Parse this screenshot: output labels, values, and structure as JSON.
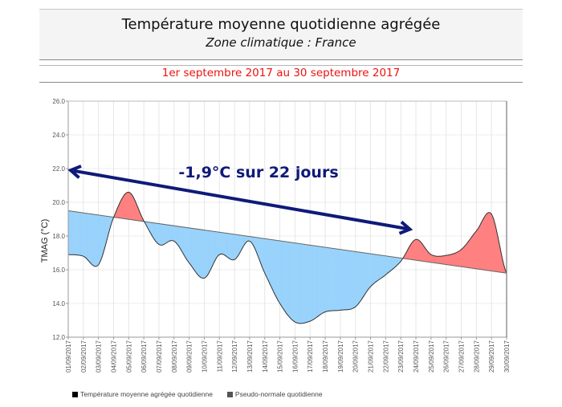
{
  "header": {
    "title": "Température moyenne quotidienne agrégée",
    "subtitle": "Zone climatique : France",
    "period": "1er septembre 2017 au 30 septembre 2017"
  },
  "chart_data": {
    "type": "area",
    "title": "Température moyenne quotidienne agrégée",
    "subtitle": "Zone climatique : France",
    "ylabel": "TMAG (°C)",
    "xlabel": "",
    "ylim": [
      12.0,
      26.0
    ],
    "yticks": [
      "12.0",
      "14.0",
      "16.0",
      "18.0",
      "20.0",
      "22.0",
      "24.0",
      "26.0"
    ],
    "grid": true,
    "categories": [
      "01/09/2017",
      "02/09/2017",
      "03/09/2017",
      "04/09/2017",
      "05/09/2017",
      "06/09/2017",
      "07/09/2017",
      "08/09/2017",
      "09/09/2017",
      "10/09/2017",
      "11/09/2017",
      "12/09/2017",
      "13/09/2017",
      "14/09/2017",
      "15/09/2017",
      "16/09/2017",
      "17/09/2017",
      "18/09/2017",
      "19/09/2017",
      "20/09/2017",
      "21/09/2017",
      "22/09/2017",
      "23/09/2017",
      "24/09/2017",
      "25/09/2017",
      "26/09/2017",
      "27/09/2017",
      "28/09/2017",
      "29/09/2017",
      "30/09/2017"
    ],
    "series": [
      {
        "name": "Température moyenne agrégée  quotidienne",
        "values": [
          16.9,
          16.8,
          16.3,
          19.1,
          20.6,
          18.9,
          17.5,
          17.7,
          16.4,
          15.5,
          16.9,
          16.6,
          17.7,
          15.8,
          14.0,
          12.9,
          12.95,
          13.5,
          13.6,
          13.8,
          15.0,
          15.7,
          16.5,
          17.8,
          16.9,
          16.85,
          17.2,
          18.3,
          19.3,
          15.8
        ],
        "color": "#000000"
      },
      {
        "name": "Pseudo-normale quotidienne",
        "values": [
          19.5,
          19.37,
          19.24,
          19.12,
          18.99,
          18.86,
          18.73,
          18.61,
          18.48,
          18.35,
          18.22,
          18.1,
          17.97,
          17.84,
          17.71,
          17.59,
          17.46,
          17.33,
          17.2,
          17.08,
          16.95,
          16.82,
          16.69,
          16.57,
          16.44,
          16.31,
          16.18,
          16.06,
          15.93,
          15.8
        ],
        "color": "#555555"
      }
    ],
    "fill_colors": {
      "above_normal": "#ff8080",
      "below_normal": "#99d3fc"
    },
    "annotation": {
      "text": "-1,9°C sur 22 jours",
      "color": "#0f1a78",
      "arrow_from_day": 1,
      "arrow_from_value": 21.9,
      "arrow_to_day": 23.6,
      "arrow_to_value": 18.4
    },
    "legend_position": "bottom-left"
  }
}
